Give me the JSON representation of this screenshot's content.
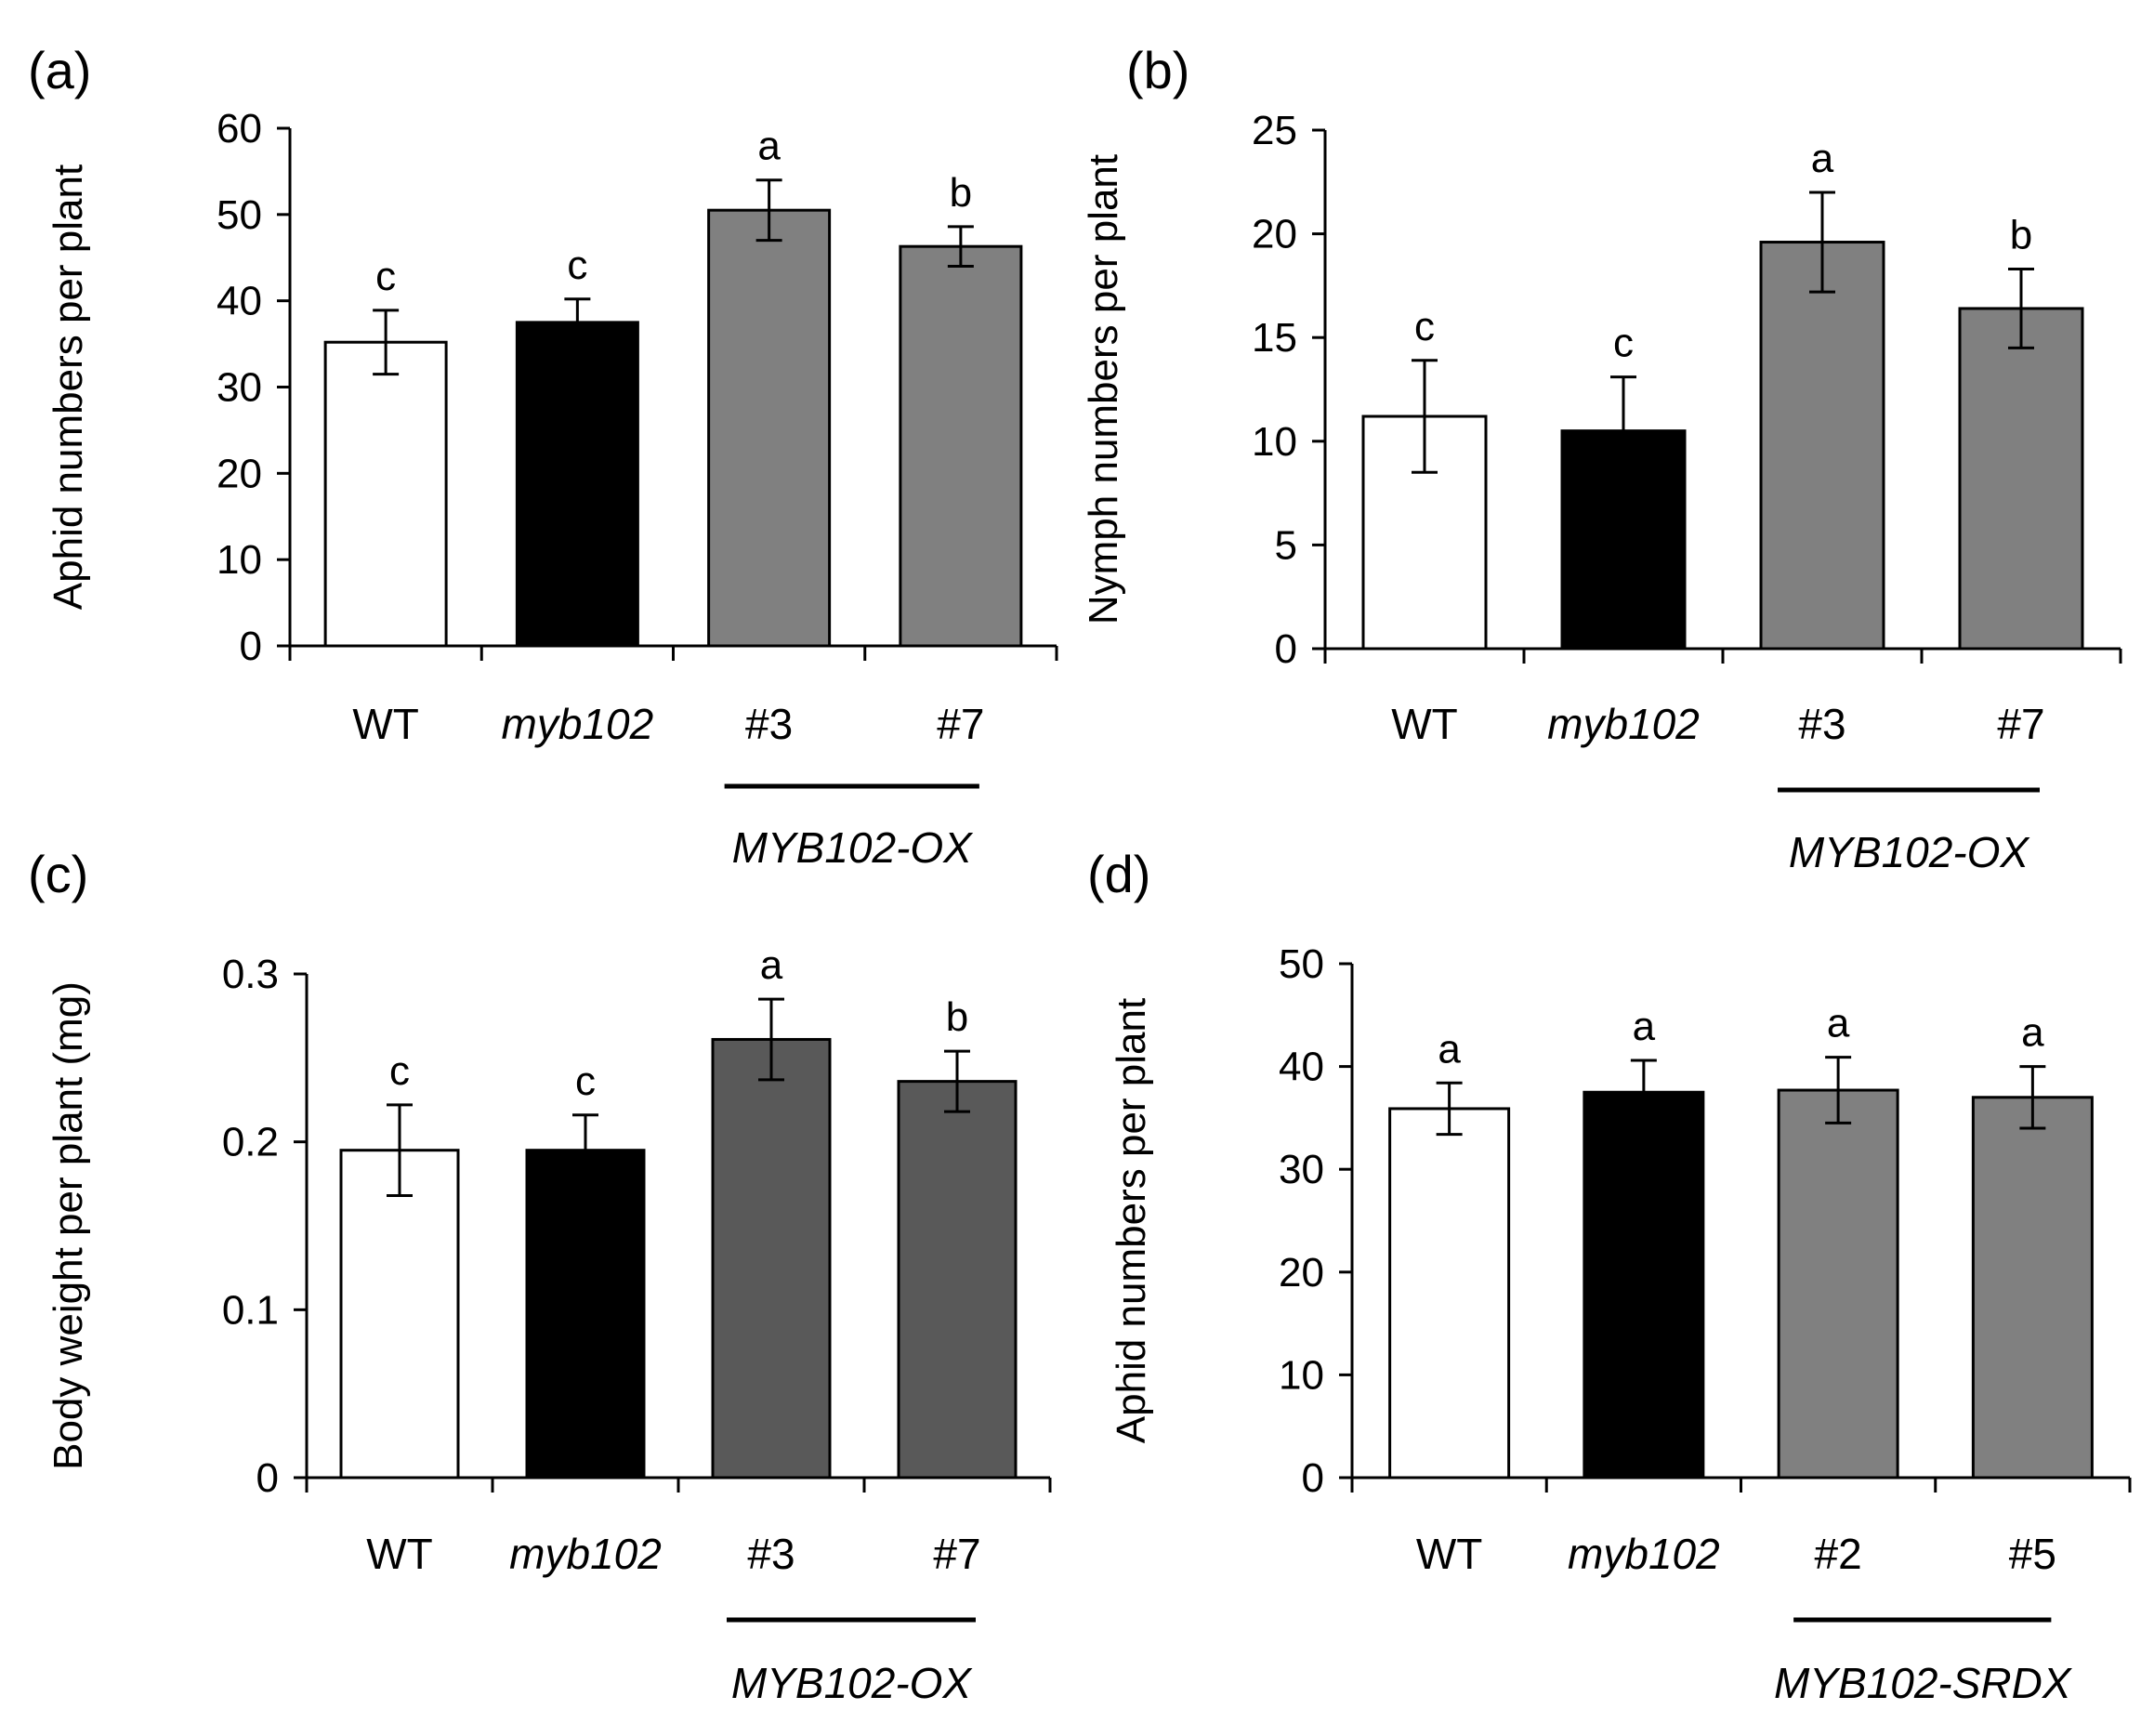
{
  "chart_data": [
    {
      "panel_label": "(a)",
      "type": "bar",
      "ylabel": "Aphid numbers per plant",
      "ylim": [
        0,
        60
      ],
      "yticks": [
        0,
        10,
        20,
        30,
        40,
        50,
        60
      ],
      "categories": [
        "WT",
        "myb102",
        "#3",
        "#7"
      ],
      "italic_categories": [
        false,
        true,
        false,
        false
      ],
      "values": [
        35.2,
        37.5,
        50.5,
        46.3
      ],
      "errors": [
        3.7,
        2.7,
        3.5,
        2.3
      ],
      "bar_colors": [
        "#ffffff",
        "#000000",
        "#808080",
        "#808080"
      ],
      "letters": [
        "c",
        "c",
        "a",
        "b"
      ],
      "group": {
        "label": "MYB102-OX",
        "from": 2,
        "to": 3
      }
    },
    {
      "panel_label": "(b)",
      "type": "bar",
      "ylabel": "Nymph numbers per plant",
      "ylim": [
        0,
        25
      ],
      "yticks": [
        0,
        5,
        10,
        15,
        20,
        25
      ],
      "categories": [
        "WT",
        "myb102",
        "#3",
        "#7"
      ],
      "italic_categories": [
        false,
        true,
        false,
        false
      ],
      "values": [
        11.2,
        10.5,
        19.6,
        16.4
      ],
      "errors": [
        2.7,
        2.6,
        2.4,
        1.9
      ],
      "bar_colors": [
        "#ffffff",
        "#000000",
        "#808080",
        "#808080"
      ],
      "letters": [
        "c",
        "c",
        "a",
        "b"
      ],
      "group": {
        "label": "MYB102-OX",
        "from": 2,
        "to": 3
      }
    },
    {
      "panel_label": "(c)",
      "type": "bar",
      "ylabel": "Body weight per plant (mg)",
      "ylim": [
        0,
        0.3
      ],
      "yticks": [
        0,
        0.1,
        0.2,
        0.3
      ],
      "ytick_labels": [
        "0",
        "0.1",
        "0.2",
        "0.3"
      ],
      "categories": [
        "WT",
        "myb102",
        "#3",
        "#7"
      ],
      "italic_categories": [
        false,
        true,
        false,
        false
      ],
      "values": [
        0.195,
        0.195,
        0.261,
        0.236
      ],
      "errors": [
        0.027,
        0.021,
        0.024,
        0.018
      ],
      "bar_colors": [
        "#ffffff",
        "#000000",
        "#595959",
        "#595959"
      ],
      "letters": [
        "c",
        "c",
        "a",
        "b"
      ],
      "group": {
        "label": "MYB102-OX",
        "from": 2,
        "to": 3
      }
    },
    {
      "panel_label": "(d)",
      "type": "bar",
      "ylabel": "Aphid numbers per plant",
      "ylim": [
        0,
        50
      ],
      "yticks": [
        0,
        10,
        20,
        30,
        40,
        50
      ],
      "categories": [
        "WT",
        "myb102",
        "#2",
        "#5"
      ],
      "italic_categories": [
        false,
        true,
        false,
        false
      ],
      "values": [
        35.9,
        37.5,
        37.7,
        37.0
      ],
      "errors": [
        2.5,
        3.1,
        3.2,
        3.0
      ],
      "bar_colors": [
        "#ffffff",
        "#000000",
        "#808080",
        "#808080"
      ],
      "letters": [
        "a",
        "a",
        "a",
        "a"
      ],
      "group": {
        "label": "MYB102-SRDX",
        "from": 2,
        "to": 3
      }
    }
  ]
}
